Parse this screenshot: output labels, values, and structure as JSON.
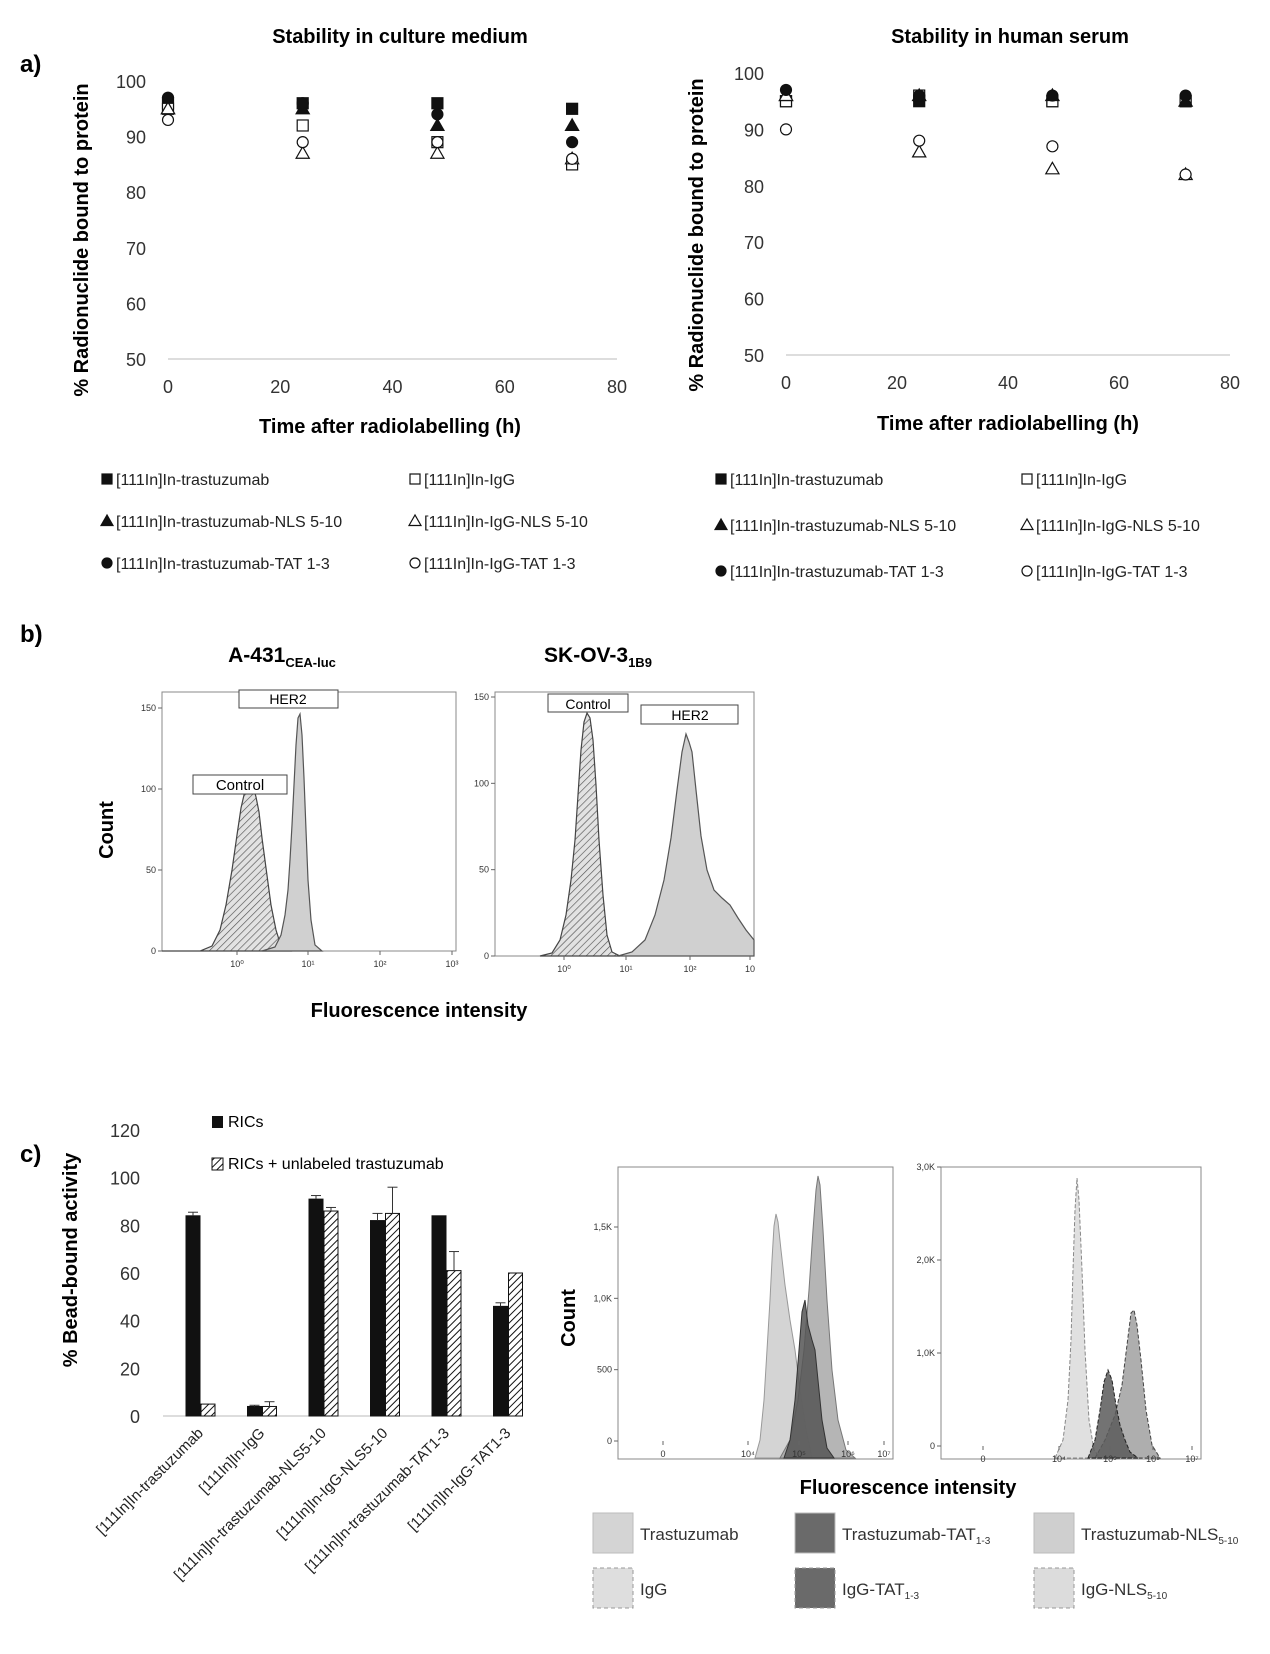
{
  "panel_labels": {
    "a": "a)",
    "b": "b)",
    "c": "c)"
  },
  "stability_axes": {
    "ticks_y": [
      "50",
      "60",
      "70",
      "80",
      "90",
      "100"
    ],
    "ticks_x": [
      "0",
      "20",
      "40",
      "60",
      "80"
    ]
  },
  "legend_a": [
    {
      "label": "[111In]In-trastuzumab",
      "marker": "filled-square"
    },
    {
      "label": "[111In]In-IgG",
      "marker": "open-square"
    },
    {
      "label": "[111In]In-trastuzumab-NLS 5-10",
      "marker": "filled-triangle"
    },
    {
      "label": "[111In]In-IgG-NLS 5-10",
      "marker": "open-triangle"
    },
    {
      "label": "[111In]In-trastuzumab-TAT 1-3",
      "marker": "filled-circle"
    },
    {
      "label": "[111In]In-IgG-TAT 1-3",
      "marker": "open-circle"
    }
  ],
  "panel_b": {
    "xlabel": "Fluorescence intensity",
    "ylabel": "Count",
    "left": {
      "title": "A-431",
      "subscript": "CEA-luc",
      "control_label": "Control",
      "her2_label": "HER2",
      "yticks": [
        "0",
        "50",
        "100",
        "150"
      ],
      "xticks": [
        "10⁰",
        "10¹",
        "10²",
        "10³"
      ]
    },
    "right": {
      "title": "SK-OV-3",
      "subscript": "1B9",
      "control_label": "Control",
      "her2_label": "HER2",
      "yticks": [
        "0",
        "50",
        "100",
        "150"
      ],
      "xticks": [
        "10⁰",
        "10¹",
        "10²",
        "10"
      ]
    }
  },
  "panel_c_flow": {
    "xlabel": "Fluorescence intensity",
    "ylabel": "Count",
    "left_yticks": [
      "0",
      "500",
      "1,0K",
      "1,5K"
    ],
    "right_yticks": [
      "0",
      "1,0K",
      "2,0K",
      "3,0K"
    ],
    "xticks": [
      "0",
      "10⁴",
      "10⁵",
      "10⁶",
      "10⁷"
    ],
    "legend": [
      {
        "label": "Trastuzumab",
        "sub": "",
        "color": "#d4d4d4",
        "dashed": false
      },
      {
        "label": "Trastuzumab-TAT",
        "sub": "1-3",
        "color": "#6a6a6a",
        "dashed": false
      },
      {
        "label": "Trastuzumab-NLS",
        "sub": "5-10",
        "color": "#cfcfcf",
        "dashed": false
      },
      {
        "label": "IgG",
        "sub": "",
        "color": "#dedede",
        "dashed": true
      },
      {
        "label": "IgG-TAT",
        "sub": "1-3",
        "color": "#6a6a6a",
        "dashed": true
      },
      {
        "label": "IgG-NLS",
        "sub": "5-10",
        "color": "#dcdcdc",
        "dashed": true
      }
    ]
  },
  "chart_data": [
    {
      "type": "scatter",
      "title": "Stability in culture medium",
      "xlabel": "Time after radiolabelling (h)",
      "ylabel": "% Radionuclide bound to protein",
      "xlim": [
        0,
        80
      ],
      "ylim": [
        50,
        100
      ],
      "series": [
        {
          "name": "[111In]In-trastuzumab",
          "marker": "filled-square",
          "x": [
            0,
            24,
            48,
            72
          ],
          "y": [
            96,
            96,
            96,
            95
          ]
        },
        {
          "name": "[111In]In-IgG",
          "marker": "open-square",
          "x": [
            0,
            24,
            48,
            72
          ],
          "y": [
            95,
            92,
            89,
            85
          ]
        },
        {
          "name": "[111In]In-trastuzumab-NLS 5-10",
          "marker": "filled-triangle",
          "x": [
            0,
            24,
            48,
            72
          ],
          "y": [
            95,
            95,
            92,
            92
          ]
        },
        {
          "name": "[111In]In-IgG-NLS 5-10",
          "marker": "open-triangle",
          "x": [
            0,
            24,
            48,
            72
          ],
          "y": [
            95,
            87,
            87,
            86
          ]
        },
        {
          "name": "[111In]In-trastuzumab-TAT 1-3",
          "marker": "filled-circle",
          "x": [
            0,
            24,
            48,
            72
          ],
          "y": [
            97,
            96,
            94,
            89
          ]
        },
        {
          "name": "[111In]In-IgG-TAT 1-3",
          "marker": "open-circle",
          "x": [
            0,
            24,
            48,
            72
          ],
          "y": [
            93,
            89,
            89,
            86
          ]
        }
      ]
    },
    {
      "type": "scatter",
      "title": "Stability in human serum",
      "xlabel": "Time after radiolabelling (h)",
      "ylabel": "% Radionuclide bound to protein",
      "xlim": [
        0,
        80
      ],
      "ylim": [
        50,
        100
      ],
      "series": [
        {
          "name": "[111In]In-trastuzumab",
          "marker": "filled-square",
          "x": [
            0,
            24,
            48,
            72
          ],
          "y": [
            95,
            95,
            95,
            95
          ]
        },
        {
          "name": "[111In]In-IgG",
          "marker": "open-square",
          "x": [
            0,
            24,
            48,
            72
          ],
          "y": [
            95,
            96,
            95,
            95
          ]
        },
        {
          "name": "[111In]In-trastuzumab-NLS 5-10",
          "marker": "filled-triangle",
          "x": [
            0,
            24,
            48,
            72
          ],
          "y": [
            96,
            96,
            96,
            95
          ]
        },
        {
          "name": "[111In]In-IgG-NLS 5-10",
          "marker": "open-triangle",
          "x": [
            0,
            24,
            48,
            72
          ],
          "y": [
            96,
            86,
            83,
            82
          ]
        },
        {
          "name": "[111In]In-trastuzumab-TAT 1-3",
          "marker": "filled-circle",
          "x": [
            0,
            24,
            48,
            72
          ],
          "y": [
            97,
            96,
            96,
            96
          ]
        },
        {
          "name": "[111In]In-IgG-TAT 1-3",
          "marker": "open-circle",
          "x": [
            0,
            24,
            48,
            72
          ],
          "y": [
            90,
            88,
            87,
            82
          ]
        }
      ]
    },
    {
      "type": "bar",
      "title": "",
      "xlabel": "",
      "ylabel": "% Bead-bound activity",
      "ylim": [
        0,
        120
      ],
      "yticks": [
        "0",
        "20",
        "40",
        "60",
        "80",
        "100",
        "120"
      ],
      "categories": [
        "[111In]In-trastuzumab",
        "[111In]In-IgG",
        "[111In]In-trastuzumab-NLS5-10",
        "[111In]In-IgG-NLS5-10",
        "[111In]In-trastuzumab-TAT1-3",
        "[111In]In-IgG-TAT1-3"
      ],
      "series": [
        {
          "name": "RICs",
          "fill": "solid",
          "values": [
            84,
            4,
            91,
            82,
            84,
            46
          ],
          "errors": [
            1.5,
            0.5,
            1.5,
            3,
            0,
            1.5
          ]
        },
        {
          "name": "RICs + unlabeled trastuzumab",
          "fill": "hatched",
          "values": [
            5,
            4,
            86,
            85,
            61,
            60
          ],
          "errors": [
            0,
            2,
            1.5,
            11,
            8,
            0
          ]
        }
      ],
      "legend_position": "top"
    }
  ]
}
